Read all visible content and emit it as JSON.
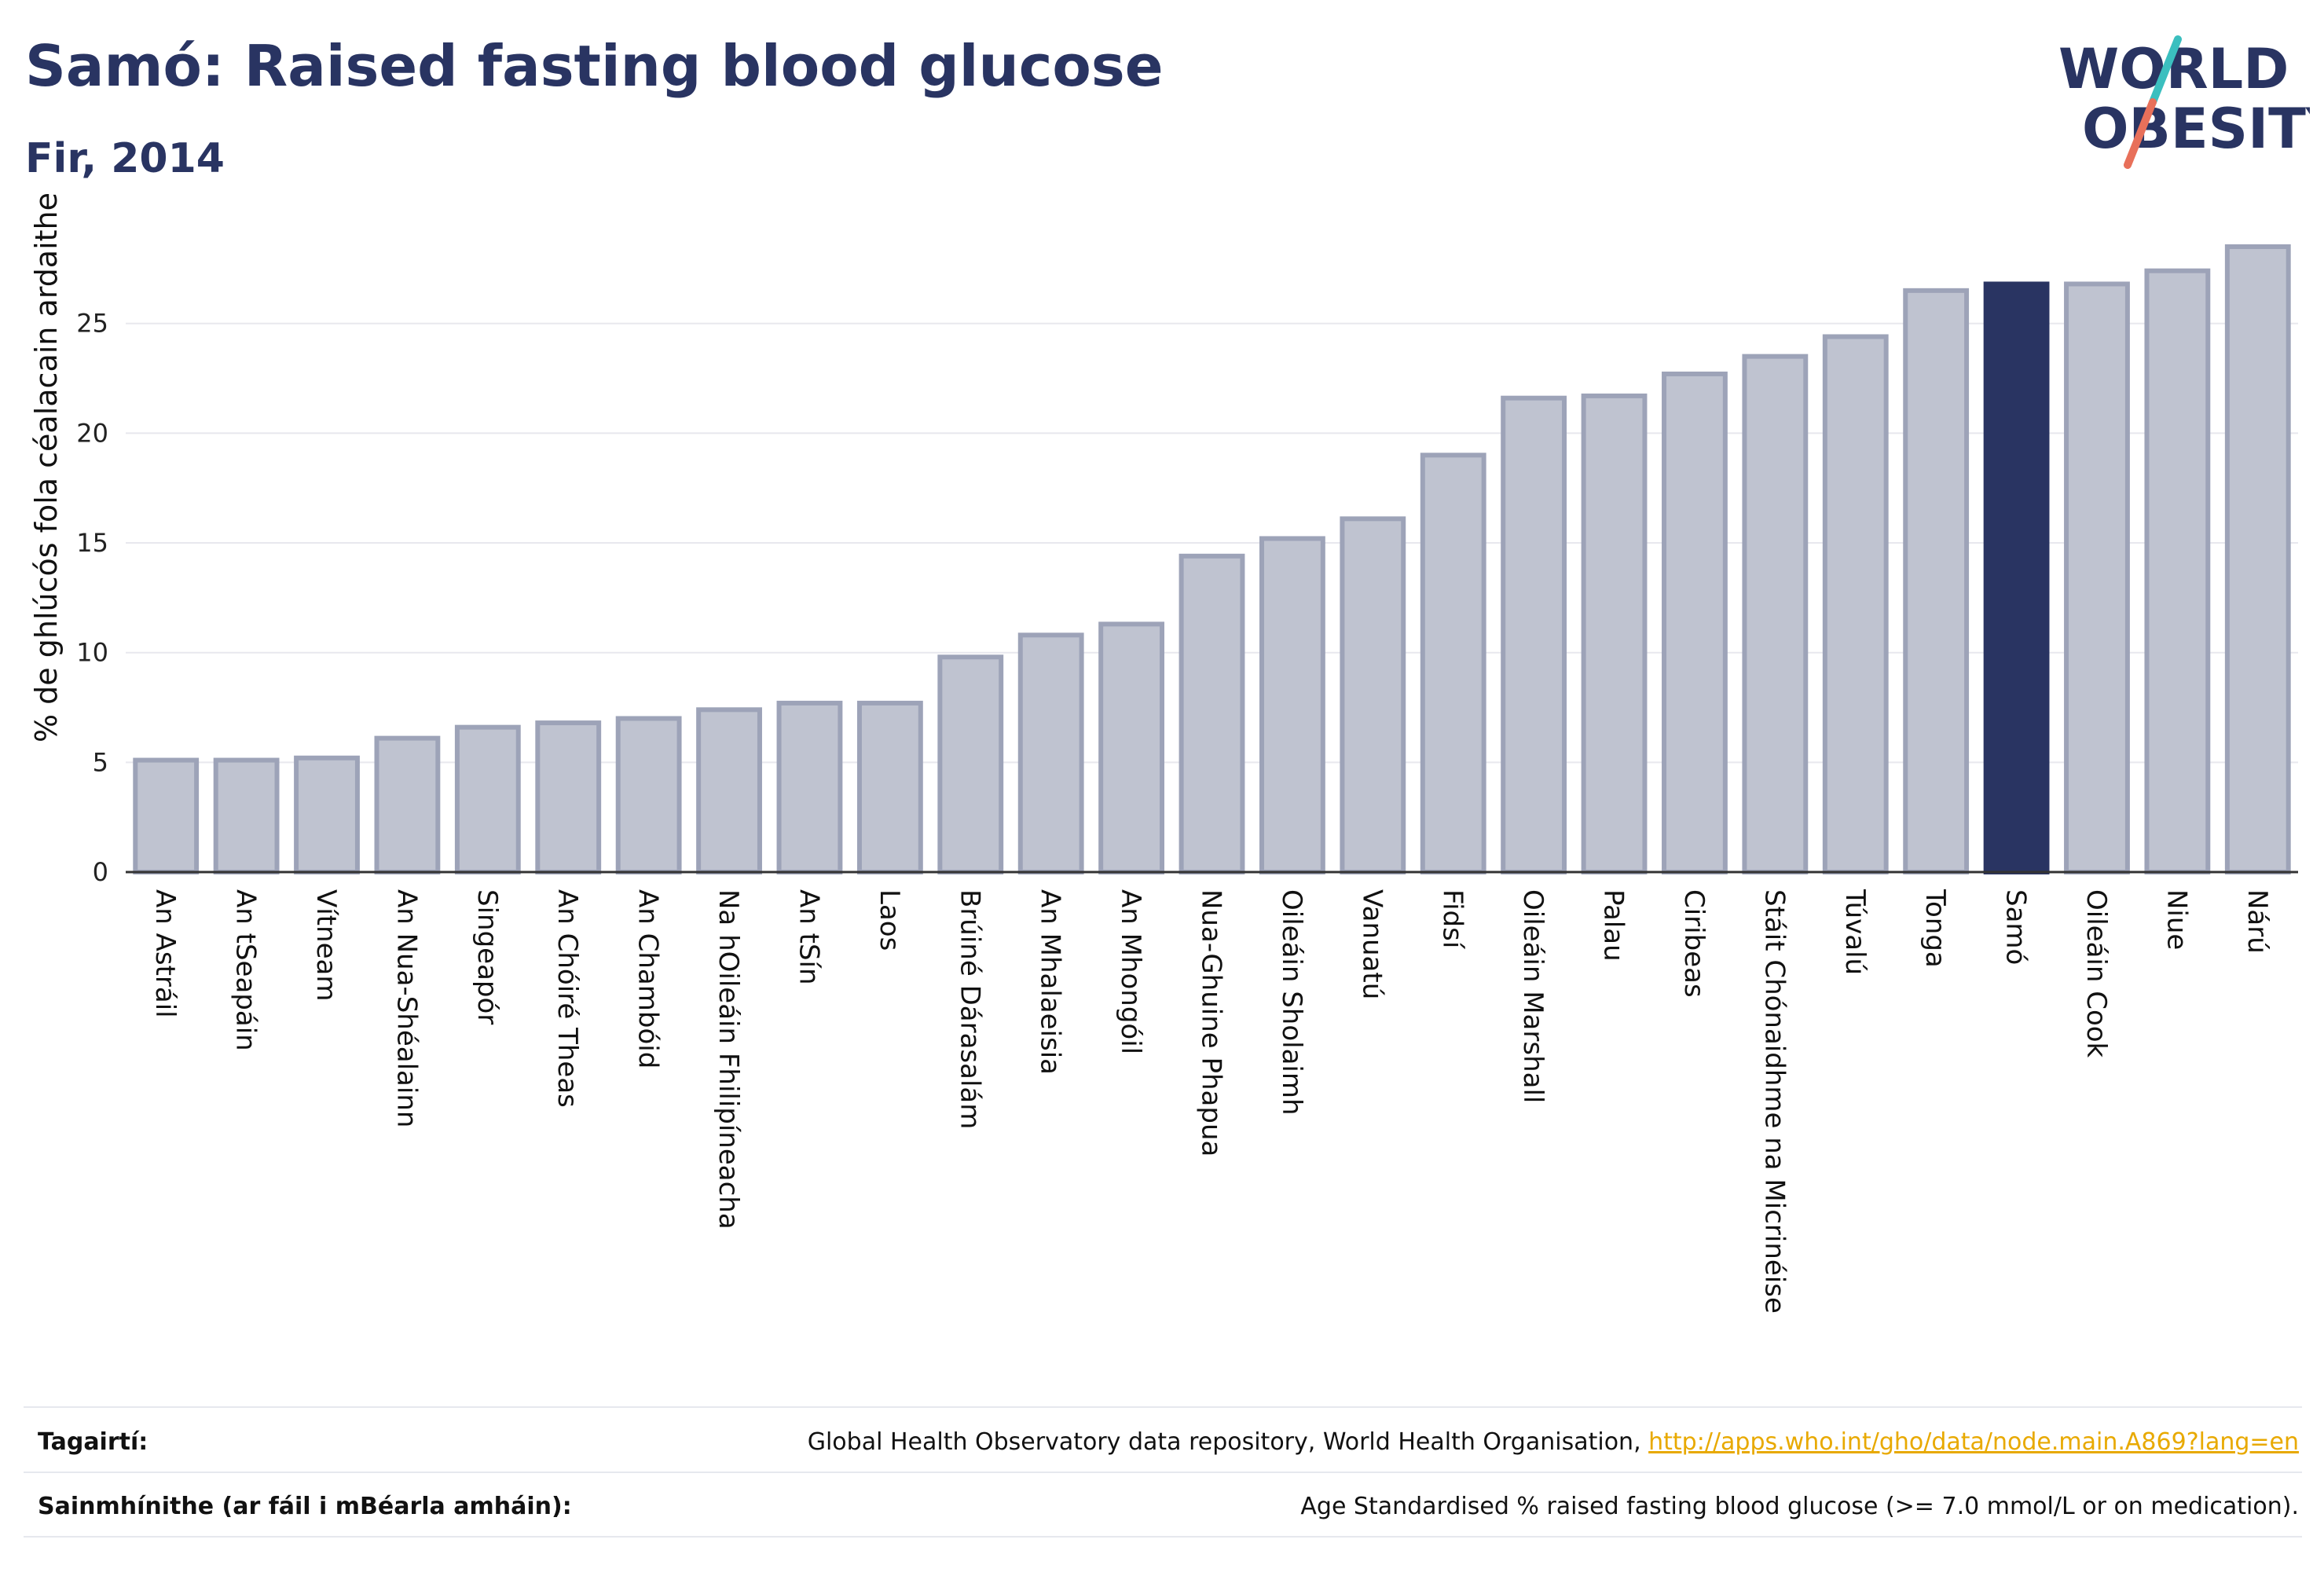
{
  "header": {
    "title": "Samó: Raised fasting blood glucose",
    "subtitle": "Fir, 2014"
  },
  "logo": {
    "line1": "WORLD",
    "line2": "OBESITY",
    "slash_colors": [
      "#3bbfbf",
      "#e8705a"
    ]
  },
  "colors": {
    "bar": "#bfc3d0",
    "bar_stroke": "#9da3b8",
    "highlight": "#293462",
    "axis": "#333333",
    "grid": "#e8e8ee"
  },
  "chart_data": {
    "type": "bar",
    "ylabel": "% de ghlúcós fola céalacain ardaithe",
    "ylim": [
      0,
      29
    ],
    "yticks": [
      0,
      5,
      10,
      15,
      20,
      25
    ],
    "highlight": "Samó",
    "categories": [
      "An Astráil",
      "An tSeapáin",
      "Vítneam",
      "An Nua-Shéalainn",
      "Singeapór",
      "An Chóiré Theas",
      "An Chambóid",
      "Na hOileáin Fhilipíneacha",
      "An tSín",
      "Laos",
      "Brúiné Dárasalám",
      "An Mhalaeisia",
      "An Mhongóil",
      "Nua-Ghuine Phapua",
      "Oileáin Sholaimh",
      "Vanuatú",
      "Fidsí",
      "Oileáin Marshall",
      "Palau",
      "Ciribeas",
      "Stáit Chónaidhme na Micrinéise",
      "Túvalú",
      "Tonga",
      "Samó",
      "Oileáin Cook",
      "Niue",
      "Nárú"
    ],
    "values": [
      5.1,
      5.1,
      5.2,
      6.1,
      6.6,
      6.8,
      7.0,
      7.4,
      7.7,
      7.7,
      9.8,
      10.8,
      11.3,
      14.4,
      15.2,
      16.1,
      19.0,
      21.6,
      21.7,
      22.7,
      23.5,
      24.4,
      26.5,
      26.8,
      26.8,
      27.4,
      28.5
    ]
  },
  "footer": {
    "references_label": "Tagairtí:",
    "references_text": "Global Health Observatory data repository, World Health Organisation, ",
    "references_link": "http://apps.who.int/gho/data/node.main.A869?lang=en",
    "definitions_label": "Sainmhínithe (ar fáil i mBéarla amháin):",
    "definitions_text": "Age Standardised % raised fasting blood glucose (>= 7.0 mmol/L or on medication)."
  }
}
